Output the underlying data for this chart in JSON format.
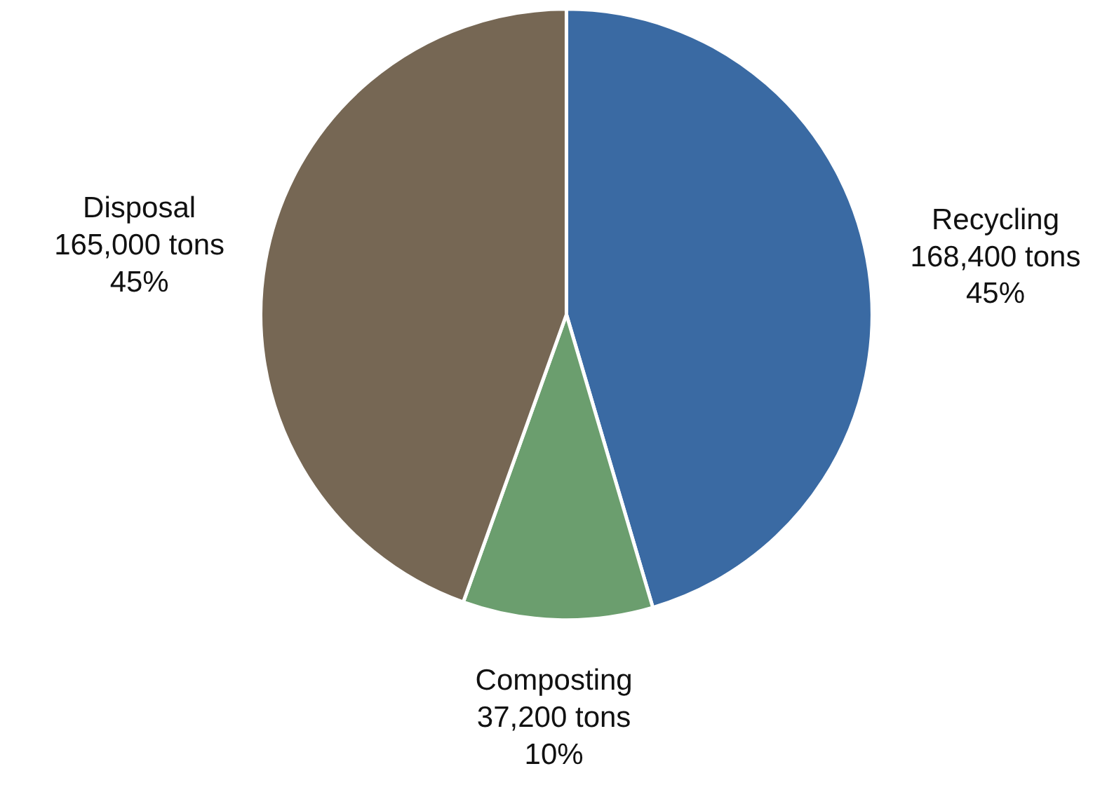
{
  "chart_data": {
    "type": "pie",
    "categories": [
      "Recycling",
      "Composting",
      "Disposal"
    ],
    "values": [
      168400,
      37200,
      165000
    ],
    "colors": [
      "#3a6aa3",
      "#6b9e6e",
      "#766754"
    ],
    "value_labels": [
      "168,400 tons\n45%",
      "37,200 tons\n10%",
      "165,000 tons\n45%"
    ]
  }
}
